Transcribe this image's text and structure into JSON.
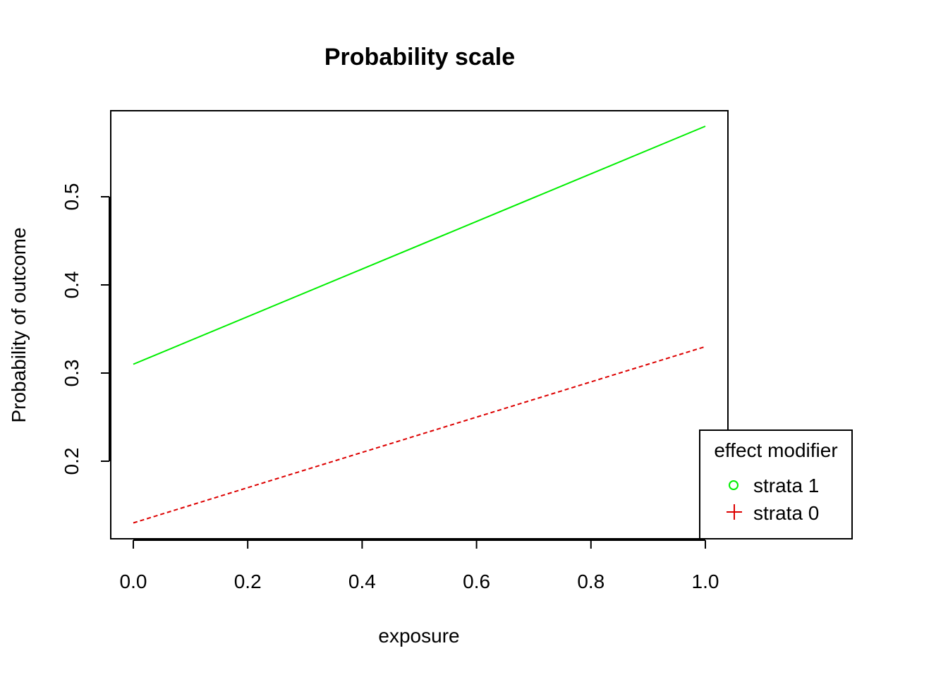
{
  "chart_data": {
    "type": "line",
    "title": "Probability scale",
    "xlabel": "exposure",
    "ylabel": "Probability of outcome",
    "xlim": [
      0.0,
      1.0
    ],
    "ylim": [
      0.12,
      0.59
    ],
    "x_ticks": [
      "0.0",
      "0.2",
      "0.4",
      "0.6",
      "0.8",
      "1.0"
    ],
    "y_ticks": [
      "0.2",
      "0.3",
      "0.4",
      "0.5"
    ],
    "grid": false,
    "legend": {
      "title": "effect modifier",
      "placement": "bottom-right",
      "entries": [
        {
          "label": "strata 1",
          "color": "#00ee00",
          "marker": "circle"
        },
        {
          "label": "strata 0",
          "color": "#dd0000",
          "marker": "plus"
        }
      ]
    },
    "series": [
      {
        "name": "strata 1",
        "color": "#00ee00",
        "style": "solid",
        "x": [
          0.0,
          1.0
        ],
        "y": [
          0.31,
          0.58
        ]
      },
      {
        "name": "strata 0",
        "color": "#dd0000",
        "style": "dashed",
        "x": [
          0.0,
          0.1,
          0.2,
          0.3,
          0.4,
          0.5,
          0.6,
          0.7,
          0.8,
          0.9,
          1.0
        ],
        "y": [
          0.13,
          0.15,
          0.17,
          0.19,
          0.21,
          0.23,
          0.25,
          0.27,
          0.29,
          0.31,
          0.33
        ]
      }
    ]
  }
}
